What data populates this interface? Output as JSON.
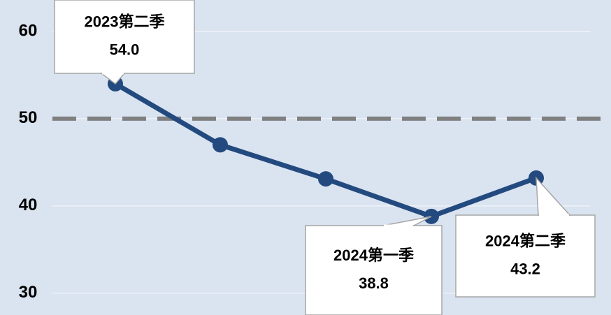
{
  "chart_data": {
    "type": "line",
    "categories": [
      "2023第二季",
      null,
      null,
      "2024第一季",
      "2024第二季"
    ],
    "series": [
      {
        "color": "#234a7f",
        "values": [
          54.0,
          47.0,
          43.1,
          38.8,
          43.2
        ],
        "value_labels": [
          "54.0",
          null,
          null,
          "38.8",
          "43.2"
        ]
      }
    ],
    "ylim": [
      27.5,
      63.6
    ],
    "yticks": [
      30,
      40,
      50,
      60
    ],
    "grid": true,
    "reference_line": {
      "value": 50,
      "color": "#808080"
    }
  }
}
